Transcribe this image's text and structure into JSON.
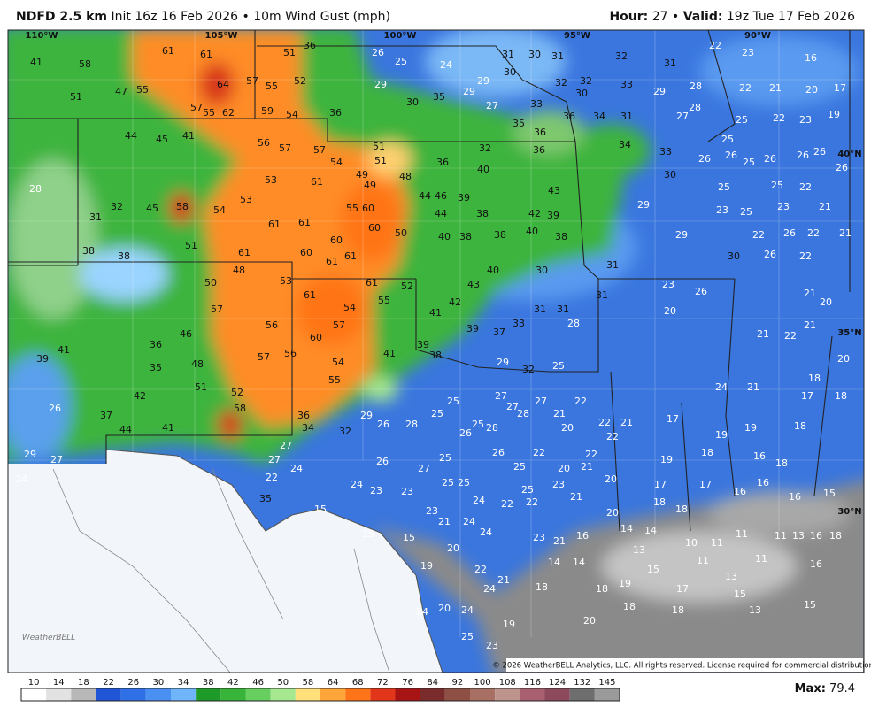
{
  "header": {
    "title": "NDFD 2.5 km",
    "init": "Init 16z 16 Feb 2026",
    "separator": "•",
    "field": "10m Wind Gust (mph)",
    "hour_label": "Hour:",
    "hour": "27",
    "valid_label": "Valid:",
    "valid": "19z Tue 17 Feb 2026"
  },
  "map": {
    "longitude_labels": [
      "110°W",
      "105°W",
      "100°W",
      "95°W",
      "90°W"
    ],
    "latitude_labels": [
      "40°N",
      "35°N",
      "30°N"
    ],
    "gust_labels": [
      41,
      58,
      61,
      61,
      64,
      57,
      55,
      52,
      36,
      51,
      62,
      59,
      54,
      36,
      26,
      25,
      24,
      29,
      30,
      35,
      29,
      31,
      30,
      31,
      32,
      31,
      22,
      23,
      16,
      51,
      47,
      55,
      57,
      55,
      44,
      45,
      41,
      56,
      57,
      57,
      54,
      51,
      51,
      49,
      49,
      48,
      36,
      40,
      32,
      36,
      34,
      33,
      30,
      26,
      26,
      28,
      31,
      32,
      45,
      58,
      54,
      53,
      53,
      61,
      55,
      60,
      60,
      50,
      44,
      46,
      39,
      44,
      38,
      42,
      39,
      43,
      40,
      38,
      38,
      40,
      38,
      61,
      61,
      60,
      38,
      38,
      51,
      61,
      60,
      61,
      61,
      48,
      50,
      53,
      61,
      52,
      61,
      54,
      55,
      57,
      60,
      57,
      56,
      57,
      56,
      54,
      55,
      41,
      41,
      42,
      43,
      40,
      30,
      31,
      29,
      29,
      30,
      23,
      26,
      22,
      23,
      26,
      20,
      31,
      31,
      31,
      28,
      33,
      37,
      39,
      39,
      38,
      29,
      32,
      25,
      39,
      41,
      36,
      35,
      48,
      46,
      51,
      52,
      58,
      42,
      41,
      44,
      37,
      26,
      29,
      27,
      36,
      34,
      32,
      29,
      26,
      28,
      25,
      25,
      25,
      28,
      26,
      27,
      27,
      28,
      27,
      21,
      22,
      22,
      21,
      17,
      19,
      19,
      18,
      17,
      18,
      18,
      21,
      24,
      21,
      22,
      21,
      20,
      20,
      21,
      21,
      22,
      26,
      22,
      23,
      21,
      22,
      25,
      25,
      25,
      26,
      25,
      26,
      26,
      26,
      25,
      25,
      22,
      23,
      19,
      21,
      20,
      17,
      22,
      28,
      29,
      33,
      32,
      30,
      32,
      30,
      29,
      33,
      27,
      35,
      36,
      36,
      34,
      31,
      27,
      28,
      24,
      24,
      23,
      23,
      23,
      21,
      24,
      25,
      25,
      24,
      22,
      22,
      25,
      23,
      21,
      20,
      21,
      20,
      17,
      17,
      16,
      16,
      16,
      15,
      18,
      18,
      10,
      11,
      11,
      11,
      11,
      13,
      16,
      18,
      16,
      11,
      13,
      15,
      17,
      13,
      14,
      14,
      20,
      16,
      23,
      21,
      14,
      14,
      18,
      18,
      19,
      18,
      18,
      15,
      13,
      15,
      20,
      19,
      24,
      24,
      21,
      22,
      24,
      20,
      19,
      15,
      15,
      15,
      24,
      22,
      35,
      27,
      27,
      26,
      27,
      25,
      26,
      25,
      22,
      22,
      20,
      22,
      19,
      18,
      18,
      16,
      25,
      20,
      24,
      23
    ],
    "watermark": "WeatherBELL",
    "copyright": "© 2026 WeatherBELL Analytics, LLC. All rights reserved. License required for commercial distribution."
  },
  "scale": {
    "ticks": [
      10,
      14,
      18,
      22,
      26,
      30,
      34,
      38,
      42,
      46,
      50,
      58,
      64,
      68,
      72,
      76,
      84,
      92,
      100,
      108,
      116,
      124,
      132,
      145
    ],
    "colors": [
      "#ffffff",
      "#e2e2e2",
      "#b8b8b8",
      "#1f55d6",
      "#2f70e6",
      "#4a90f2",
      "#70b4fa",
      "#1e9a28",
      "#38b43a",
      "#66cf60",
      "#a6e890",
      "#ffe07a",
      "#ffa63a",
      "#ff7418",
      "#e2361a",
      "#a81414",
      "#7a2c2c",
      "#8e5044",
      "#a87064",
      "#bc948c",
      "#a86070",
      "#8c4a5c",
      "#6e6e6e",
      "#9a9a9a"
    ],
    "max_label": "Max:",
    "max": "79.4"
  }
}
